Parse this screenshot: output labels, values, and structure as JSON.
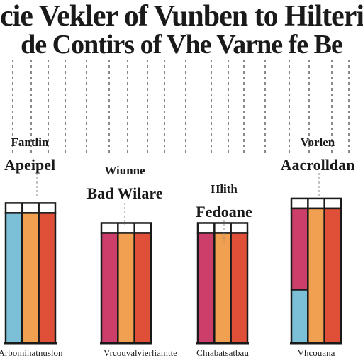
{
  "chart_data": {
    "type": "bar",
    "title": [
      "cie Vekler of Vunben to Hilterie",
      "de Contirs of Vhe Varne fe Be"
    ],
    "categories": [
      "Apeipel",
      "Bad Wilare",
      "Fedoane",
      "Vorlen"
    ],
    "x_tick_labels": [
      "Arbomihatnuslon",
      "Vrcouvalvierliamtte",
      "Clnabatsatbau",
      "Vhcouana"
    ],
    "annotations": [
      {
        "group": 0,
        "lines": [
          "Fantlin",
          "Apeipel"
        ]
      },
      {
        "group": 1,
        "lines": [
          "Wiunne",
          "Bad Wilare"
        ]
      },
      {
        "group": 2,
        "lines": [
          "Hlith",
          "Fedoane"
        ]
      },
      {
        "group": 3,
        "lines": [
          "Vorlen",
          "Aacrolldan"
        ]
      }
    ],
    "series": [
      {
        "color": "#7cc0d8",
        "values": [
          85,
          0,
          0,
          35
        ]
      },
      {
        "color": "#cc3f6a",
        "values": [
          0,
          72,
          72,
          88
        ]
      },
      {
        "color": "#f0a050",
        "values": [
          85,
          72,
          72,
          88
        ]
      },
      {
        "color": "#e05038",
        "values": [
          85,
          72,
          72,
          88
        ]
      }
    ],
    "stacked_first_bar": {
      "group": 3,
      "bottom_value": 35,
      "top_value": 88,
      "bottom_color": "#7cc0d8",
      "top_color": "#cc3f6a"
    },
    "ylim": [
      0,
      100
    ],
    "grid": "dashed vertical",
    "legend": "none",
    "background": "#ffffff"
  }
}
